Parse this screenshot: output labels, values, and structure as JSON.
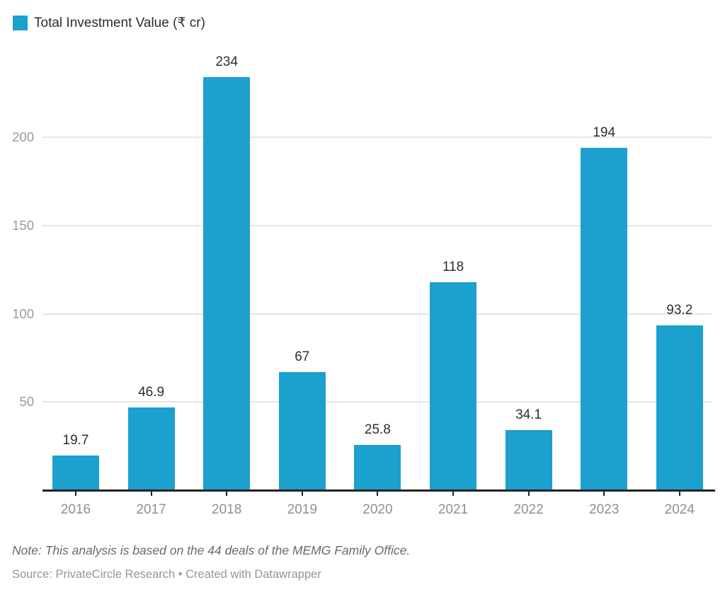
{
  "legend": {
    "label": "Total Investment Value (₹ cr)",
    "swatch_color": "#1CA0CE"
  },
  "chart_data": {
    "type": "bar",
    "title": "",
    "categories": [
      "2016",
      "2017",
      "2018",
      "2019",
      "2020",
      "2021",
      "2022",
      "2023",
      "2024"
    ],
    "series": [
      {
        "name": "Total Investment Value (₹ cr)",
        "values": [
          19.7,
          46.9,
          234,
          67,
          25.8,
          118,
          34.1,
          194,
          93.2
        ],
        "value_labels": [
          "19.7",
          "46.9",
          "234",
          "67",
          "25.8",
          "118",
          "34.1",
          "194",
          "93.2"
        ]
      }
    ],
    "xlabel": "",
    "ylabel": "",
    "ylim": [
      0,
      240
    ],
    "yticks": [
      50,
      100,
      150,
      200
    ],
    "ytick_labels": [
      "50",
      "100",
      "150",
      "200"
    ],
    "grid": true,
    "legend_position": "top-left",
    "bar_color": "#1CA0CE"
  },
  "colors": {
    "bar": "#1CA0CE",
    "value_label": "#2e2e2e",
    "axis_line": "#222222",
    "tick_label": "#8f8f8f",
    "y_label": "#9b9b9b",
    "gridline": "#e4e4e4"
  },
  "footer": {
    "note": "Note: This analysis is based on the 44 deals of the MEMG Family Office.",
    "source": "Source: PrivateCircle Research • Created with Datawrapper"
  }
}
